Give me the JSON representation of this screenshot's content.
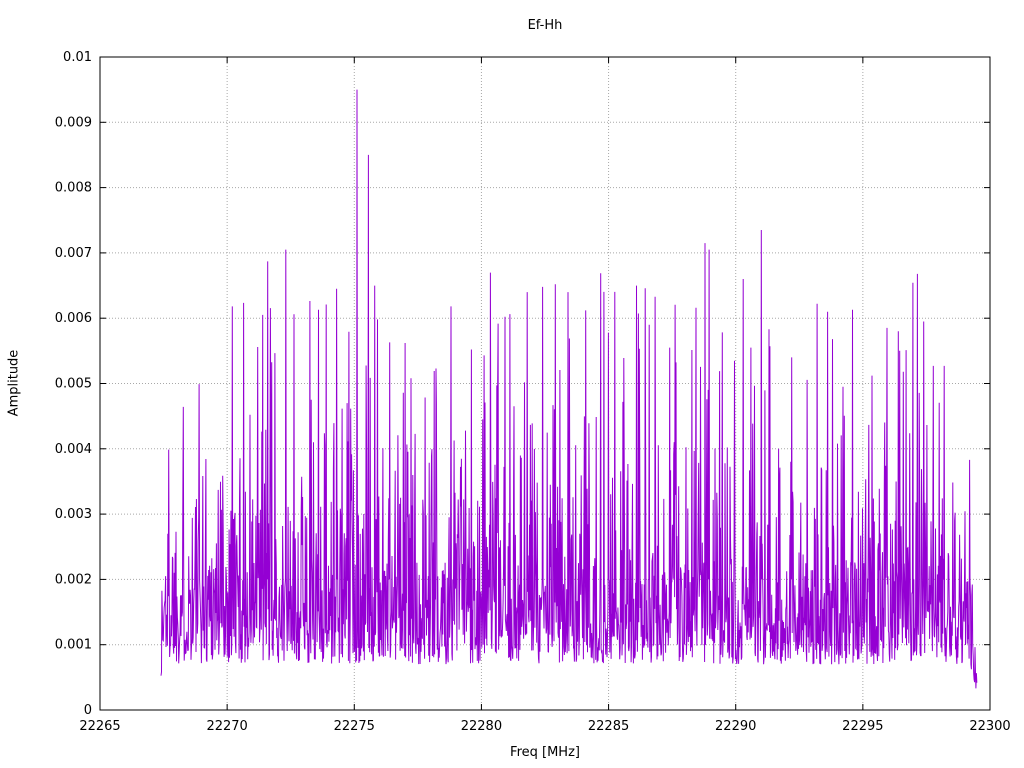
{
  "chart_data": {
    "type": "line",
    "title": "Ef-Hh",
    "xlabel": "Freq [MHz]",
    "ylabel": "Amplitude",
    "xlim": [
      22265,
      22300
    ],
    "ylim": [
      0,
      0.01
    ],
    "xtick_labels": [
      "22265",
      "22270",
      "22275",
      "22280",
      "22285",
      "22290",
      "22295",
      "22300"
    ],
    "xtick_values": [
      22265,
      22270,
      22275,
      22280,
      22285,
      22290,
      22295,
      22300
    ],
    "ytick_labels": [
      "0",
      "0.001",
      "0.002",
      "0.003",
      "0.004",
      "0.005",
      "0.006",
      "0.007",
      "0.008",
      "0.009",
      "0.01"
    ],
    "ytick_values": [
      0,
      0.001,
      0.002,
      0.003,
      0.004,
      0.005,
      0.006,
      0.007,
      0.008,
      0.009,
      0.01
    ],
    "grid": true,
    "legend": "none",
    "line_color": "#9400d3",
    "grid_color": "#a8a8a8",
    "border_color": "#000000",
    "series_x_start": 22267.4,
    "series_x_end": 22299.5,
    "n_points": 1800,
    "noise_model": {
      "seed": 1337,
      "baseline": 0.0007,
      "exp_scale": 0.00125,
      "cap": 0.0067,
      "end_taper_mhz": 0.35
    },
    "peaks": [
      {
        "x": 22275.1,
        "y": 0.0095
      },
      {
        "x": 22275.55,
        "y": 0.0085
      },
      {
        "x": 22291.0,
        "y": 0.00735
      },
      {
        "x": 22288.8,
        "y": 0.00715
      },
      {
        "x": 22288.95,
        "y": 0.00705
      },
      {
        "x": 22272.3,
        "y": 0.00705
      },
      {
        "x": 22271.6,
        "y": 0.00687
      },
      {
        "x": 22270.2,
        "y": 0.00618
      },
      {
        "x": 22271.4,
        "y": 0.00605
      },
      {
        "x": 22273.6,
        "y": 0.00613
      },
      {
        "x": 22273.9,
        "y": 0.00621
      },
      {
        "x": 22274.3,
        "y": 0.00645
      },
      {
        "x": 22275.8,
        "y": 0.0065
      },
      {
        "x": 22276.4,
        "y": 0.00563
      },
      {
        "x": 22277.0,
        "y": 0.00562
      },
      {
        "x": 22278.8,
        "y": 0.00618
      },
      {
        "x": 22279.6,
        "y": 0.00552
      },
      {
        "x": 22280.1,
        "y": 0.00543
      },
      {
        "x": 22281.8,
        "y": 0.0064
      },
      {
        "x": 22282.4,
        "y": 0.00648
      },
      {
        "x": 22282.9,
        "y": 0.00652
      },
      {
        "x": 22283.4,
        "y": 0.0064
      },
      {
        "x": 22284.1,
        "y": 0.00612
      },
      {
        "x": 22285.0,
        "y": 0.00578
      },
      {
        "x": 22286.1,
        "y": 0.0065
      },
      {
        "x": 22286.6,
        "y": 0.0059
      },
      {
        "x": 22287.4,
        "y": 0.00555
      },
      {
        "x": 22290.3,
        "y": 0.0066
      },
      {
        "x": 22290.6,
        "y": 0.00555
      },
      {
        "x": 22292.2,
        "y": 0.0054
      },
      {
        "x": 22293.2,
        "y": 0.00622
      },
      {
        "x": 22293.8,
        "y": 0.00568
      },
      {
        "x": 22294.6,
        "y": 0.00613
      },
      {
        "x": 22296.4,
        "y": 0.0058
      },
      {
        "x": 22297.4,
        "y": 0.00595
      },
      {
        "x": 22298.2,
        "y": 0.00527
      },
      {
        "x": 22299.2,
        "y": 0.00383
      }
    ]
  }
}
